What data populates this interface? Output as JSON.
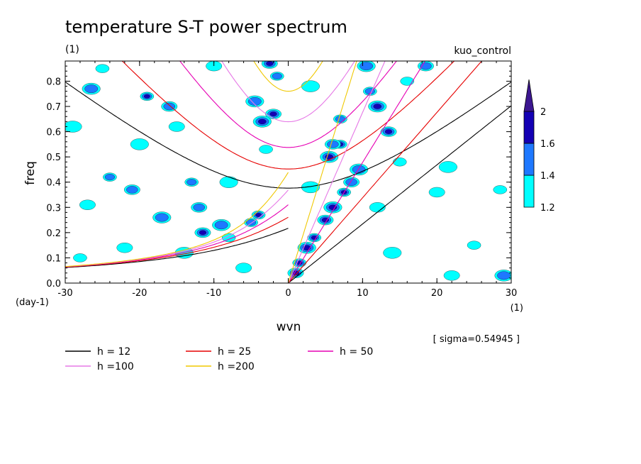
{
  "chart_data": {
    "type": "heatmap",
    "title": "temperature S-T power spectrum",
    "subtitle": "(1)",
    "experiment_label": "kuo_control",
    "xlabel": "wvn",
    "ylabel": "freq",
    "x_unit": "(1)",
    "y_unit": "(day-1)",
    "xlim": [
      -30,
      30
    ],
    "ylim": [
      0,
      0.88
    ],
    "x_ticks": [
      "-30",
      "-20",
      "-10",
      "0",
      "10",
      "20",
      "30"
    ],
    "y_ticks": [
      "0.0",
      "0.1",
      "0.2",
      "0.3",
      "0.4",
      "0.5",
      "0.6",
      "0.7",
      "0.8"
    ],
    "sigma_label": "[ sigma=0.54945 ]",
    "colorbar": {
      "levels": [
        "1.2",
        "1.4",
        "1.6",
        "2"
      ],
      "colors": [
        "#00ffff",
        "#1e78ff",
        "#1400b4",
        "#3c1690"
      ]
    },
    "dispersion_curves": [
      {
        "label": "h = 12",
        "h": 12,
        "color": "#000000"
      },
      {
        "label": "h = 25",
        "h": 25,
        "color": "#e60000"
      },
      {
        "label": "h = 50",
        "h": 50,
        "color": "#e600b4"
      },
      {
        "label": "h =100",
        "h": 100,
        "color": "#e678e6"
      },
      {
        "label": "h =200",
        "h": 200,
        "color": "#f0c800"
      }
    ],
    "spectral_blobs": [
      {
        "x": 1.5,
        "y": 0.08,
        "level": 3
      },
      {
        "x": 1.0,
        "y": 0.04,
        "level": 3
      },
      {
        "x": 2.5,
        "y": 0.14,
        "level": 3
      },
      {
        "x": 3.5,
        "y": 0.18,
        "level": 3
      },
      {
        "x": 5.0,
        "y": 0.25,
        "level": 3
      },
      {
        "x": 6.0,
        "y": 0.3,
        "level": 3
      },
      {
        "x": 7.5,
        "y": 0.36,
        "level": 3
      },
      {
        "x": 8.5,
        "y": 0.4,
        "level": 2
      },
      {
        "x": 9.5,
        "y": 0.45,
        "level": 2
      },
      {
        "x": 7.0,
        "y": 0.55,
        "level": 3
      },
      {
        "x": 13.5,
        "y": 0.6,
        "level": 3
      },
      {
        "x": 12.0,
        "y": 0.7,
        "level": 3
      },
      {
        "x": 11.0,
        "y": 0.76,
        "level": 2
      },
      {
        "x": 18.5,
        "y": 0.86,
        "level": 2
      },
      {
        "x": 10.5,
        "y": 0.86,
        "level": 2
      },
      {
        "x": 7.0,
        "y": 0.65,
        "level": 2
      },
      {
        "x": 6.0,
        "y": 0.55,
        "level": 2
      },
      {
        "x": 5.5,
        "y": 0.5,
        "level": 3
      },
      {
        "x": -4.0,
        "y": 0.27,
        "level": 3
      },
      {
        "x": -11.5,
        "y": 0.2,
        "level": 3
      },
      {
        "x": -9.0,
        "y": 0.23,
        "level": 2
      },
      {
        "x": -5.0,
        "y": 0.24,
        "level": 2
      },
      {
        "x": -2.0,
        "y": 0.67,
        "level": 3
      },
      {
        "x": -3.5,
        "y": 0.64,
        "level": 3
      },
      {
        "x": -1.5,
        "y": 0.82,
        "level": 2
      },
      {
        "x": -2.5,
        "y": 0.87,
        "level": 3
      },
      {
        "x": -4.5,
        "y": 0.72,
        "level": 2
      },
      {
        "x": -19.0,
        "y": 0.74,
        "level": 3
      },
      {
        "x": -16.0,
        "y": 0.7,
        "level": 2
      },
      {
        "x": -26.5,
        "y": 0.77,
        "level": 2
      },
      {
        "x": -24.0,
        "y": 0.42,
        "level": 2
      },
      {
        "x": -21.0,
        "y": 0.37,
        "level": 2
      },
      {
        "x": -17.0,
        "y": 0.26,
        "level": 2
      },
      {
        "x": -13.0,
        "y": 0.4,
        "level": 2
      },
      {
        "x": -12.0,
        "y": 0.3,
        "level": 2
      },
      {
        "x": -8.0,
        "y": 0.4,
        "level": 1
      },
      {
        "x": -3.0,
        "y": 0.53,
        "level": 1
      },
      {
        "x": -15.0,
        "y": 0.62,
        "level": 1
      },
      {
        "x": -20.0,
        "y": 0.55,
        "level": 1
      },
      {
        "x": -28.0,
        "y": 0.1,
        "level": 1
      },
      {
        "x": -22.0,
        "y": 0.14,
        "level": 1
      },
      {
        "x": -14.0,
        "y": 0.12,
        "level": 1
      },
      {
        "x": -8.0,
        "y": 0.18,
        "level": 1
      },
      {
        "x": -27.0,
        "y": 0.31,
        "level": 1
      },
      {
        "x": -29.0,
        "y": 0.62,
        "level": 1
      },
      {
        "x": -25.0,
        "y": 0.85,
        "level": 1
      },
      {
        "x": -10.0,
        "y": 0.86,
        "level": 1
      },
      {
        "x": 3.0,
        "y": 0.78,
        "level": 1
      },
      {
        "x": 15.0,
        "y": 0.48,
        "level": 1
      },
      {
        "x": 20.0,
        "y": 0.36,
        "level": 1
      },
      {
        "x": 21.5,
        "y": 0.46,
        "level": 1
      },
      {
        "x": 25.0,
        "y": 0.15,
        "level": 1
      },
      {
        "x": 22.0,
        "y": 0.03,
        "level": 1
      },
      {
        "x": 29.0,
        "y": 0.03,
        "level": 2
      },
      {
        "x": 28.5,
        "y": 0.37,
        "level": 1
      },
      {
        "x": 12.0,
        "y": 0.3,
        "level": 1
      },
      {
        "x": 14.0,
        "y": 0.12,
        "level": 1
      },
      {
        "x": 16.0,
        "y": 0.8,
        "level": 1
      },
      {
        "x": -6.0,
        "y": 0.06,
        "level": 1
      },
      {
        "x": 3.0,
        "y": 0.38,
        "level": 1
      }
    ]
  }
}
